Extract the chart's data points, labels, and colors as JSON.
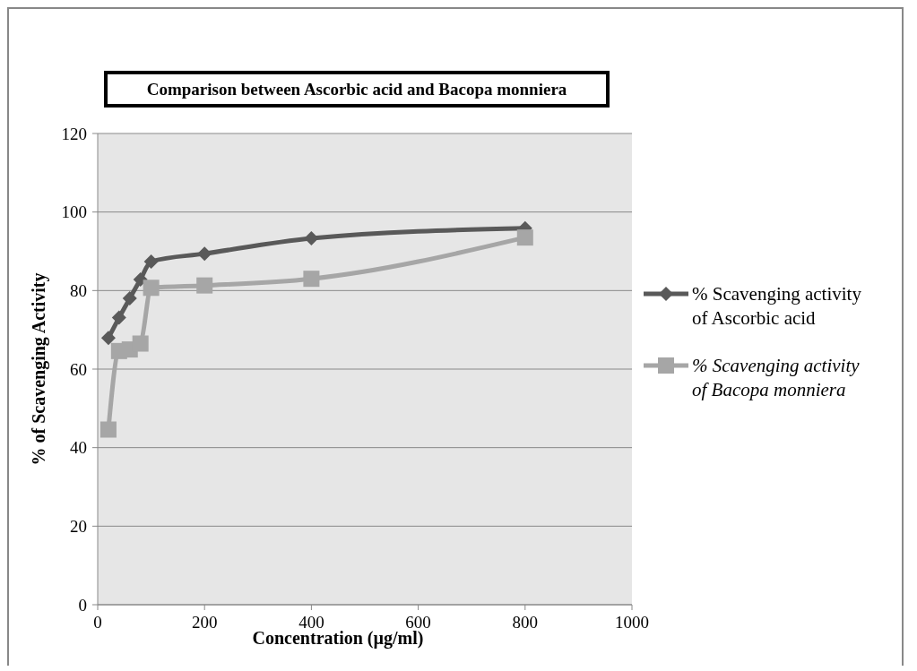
{
  "chart_data": {
    "type": "line",
    "title": "Comparison  between Ascorbic acid and Bacopa monniera",
    "xlabel": "Concentration (µg/ml)",
    "ylabel": "% of Scavenging Activity",
    "x": [
      20,
      40,
      60,
      80,
      100,
      200,
      400,
      800
    ],
    "series": [
      {
        "name": "% Scavenging activity of Ascorbic acid",
        "color": "#595959",
        "marker": "diamond",
        "values": [
          67.9,
          73.1,
          78,
          82.8,
          87.4,
          89.4,
          93.3,
          95.9
        ]
      },
      {
        "name": "% Scavenging activity of Bacopa monniera",
        "color": "#a6a6a6",
        "marker": "square",
        "values": [
          44.6,
          64.6,
          65,
          66.5,
          80.7,
          81.3,
          83,
          93.5
        ]
      }
    ],
    "xlim": [
      0,
      1000
    ],
    "xticks": [
      0,
      200,
      400,
      600,
      800,
      1000
    ],
    "ylim": [
      0,
      120
    ],
    "yticks": [
      0,
      20,
      40,
      60,
      80,
      100,
      120
    ],
    "grid": "y",
    "legend": "right"
  }
}
